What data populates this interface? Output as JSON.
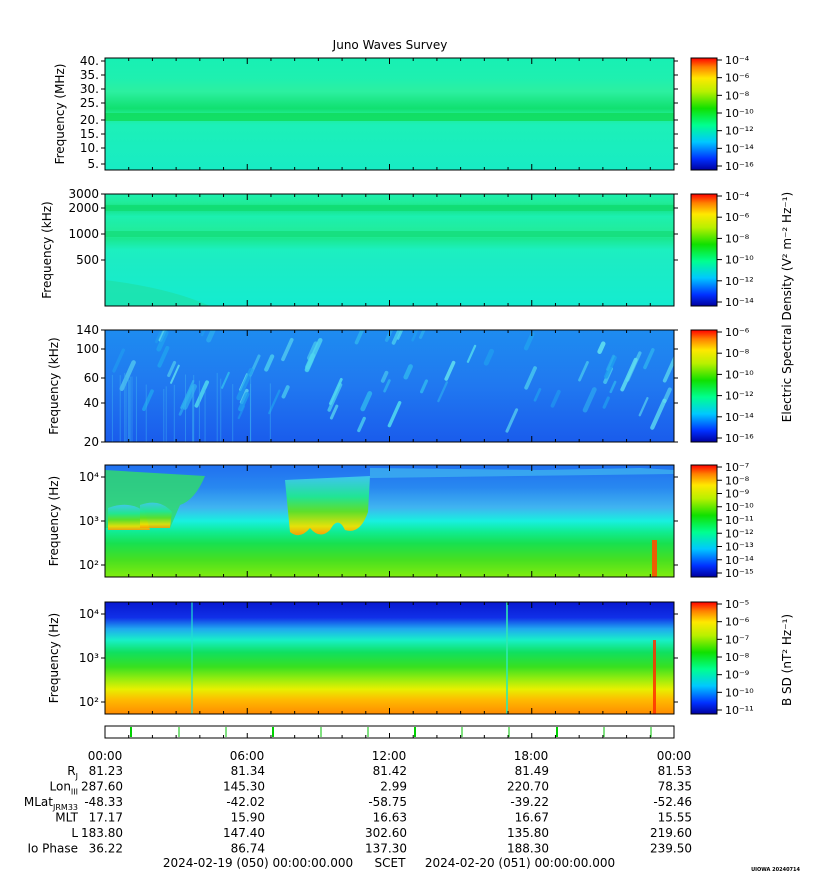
{
  "title": "Juno Waves Survey",
  "footer": {
    "start": "2024-02-19 (050) 00:00:00.000",
    "scet": "SCET",
    "end": "2024-02-20 (051) 00:00:00.000",
    "credit": "UIOWA 20240714"
  },
  "colorbar_labels": {
    "electric": "Electric Spectral Density (V² m⁻² Hz⁻¹)",
    "magnetic": "B SD (nT² Hz⁻¹)"
  },
  "chart_data": [
    {
      "type": "heatmap",
      "ylabel": "Frequency (MHz)",
      "yticks": [
        "40.",
        "35.",
        "30.",
        "25.",
        "20.",
        "15.",
        "10.",
        "5."
      ],
      "colorbar_ticks": [
        "10⁻⁴",
        "10⁻⁶",
        "10⁻⁸",
        "10⁻¹⁰",
        "10⁻¹²",
        "10⁻¹⁴",
        "10⁻¹⁶"
      ]
    },
    {
      "type": "heatmap",
      "ylabel": "Frequency (kHz)",
      "yticks": [
        "3000",
        "2000",
        "1000",
        "500"
      ],
      "colorbar_ticks": [
        "10⁻⁴",
        "10⁻⁶",
        "10⁻⁸",
        "10⁻¹⁰",
        "10⁻¹²",
        "10⁻¹⁴"
      ]
    },
    {
      "type": "heatmap",
      "ylabel": "Frequency (kHz)",
      "yticks": [
        "140",
        "100",
        "60",
        "40",
        "20"
      ],
      "colorbar_ticks": [
        "10⁻⁶",
        "10⁻⁸",
        "10⁻¹⁰",
        "10⁻¹²",
        "10⁻¹⁴",
        "10⁻¹⁶"
      ]
    },
    {
      "type": "heatmap",
      "ylabel": "Frequency (Hz)",
      "yticks": [
        "10⁴",
        "10³",
        "10²"
      ],
      "colorbar_ticks": [
        "10⁻⁷",
        "10⁻⁸",
        "10⁻⁹",
        "10⁻¹⁰",
        "10⁻¹¹",
        "10⁻¹²",
        "10⁻¹³",
        "10⁻¹⁴",
        "10⁻¹⁵"
      ]
    },
    {
      "type": "heatmap",
      "ylabel": "Frequency (Hz)",
      "yticks": [
        "10⁴",
        "10³",
        "10²"
      ],
      "colorbar_ticks": [
        "10⁻⁵",
        "10⁻⁶",
        "10⁻⁷",
        "10⁻⁸",
        "10⁻⁹",
        "10⁻¹⁰",
        "10⁻¹¹"
      ]
    }
  ],
  "time_axis": {
    "labels": [
      "00:00",
      "06:00",
      "12:00",
      "18:00",
      "00:00"
    ]
  },
  "ephemeris": [
    {
      "label": "RJ",
      "values": [
        "81.23",
        "81.34",
        "81.42",
        "81.49",
        "81.53"
      ]
    },
    {
      "label": "LonIII",
      "values": [
        "287.60",
        "145.30",
        "2.99",
        "220.70",
        "78.35"
      ]
    },
    {
      "label": "MLatJRM33",
      "values": [
        "-48.33",
        "-42.02",
        "-58.75",
        "-39.22",
        "-52.46"
      ]
    },
    {
      "label": "MLT",
      "values": [
        "17.17",
        "15.90",
        "16.63",
        "16.67",
        "15.55"
      ]
    },
    {
      "label": "L",
      "values": [
        "183.80",
        "147.40",
        "302.60",
        "135.80",
        "219.60"
      ]
    },
    {
      "label": "Io Phase",
      "values": [
        "36.22",
        "86.74",
        "137.30",
        "188.30",
        "239.50"
      ]
    }
  ]
}
